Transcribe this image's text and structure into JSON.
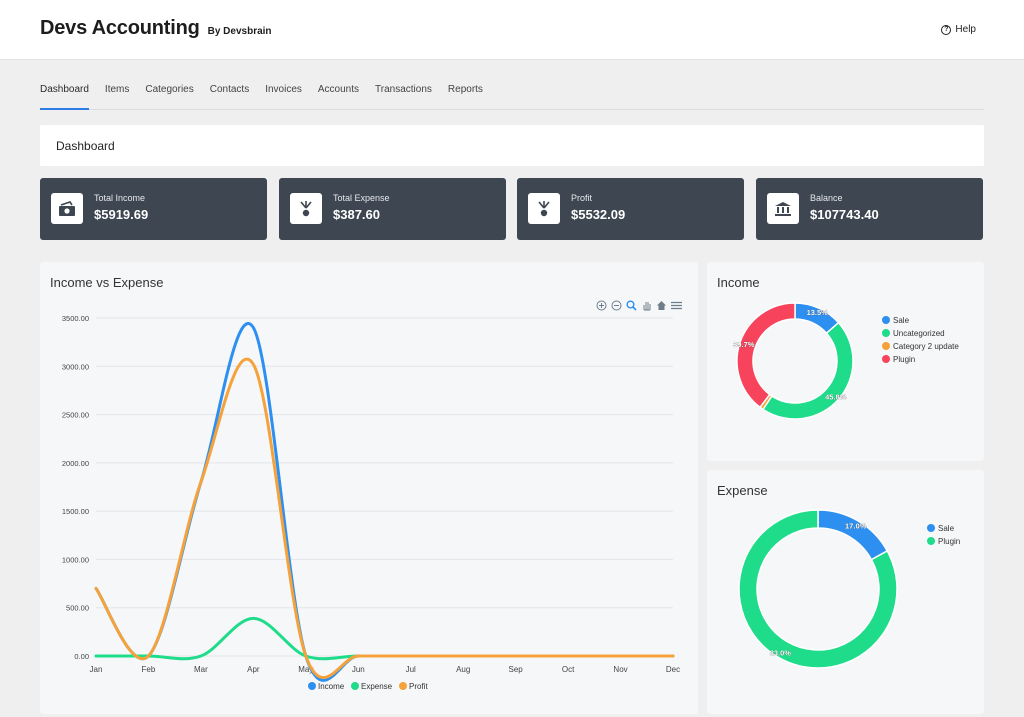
{
  "header": {
    "title": "Devs Accounting",
    "subtitle": "By Devsbrain",
    "help": "Help"
  },
  "nav": [
    {
      "label": "Dashboard",
      "active": true
    },
    {
      "label": "Items"
    },
    {
      "label": "Categories"
    },
    {
      "label": "Contacts"
    },
    {
      "label": "Invoices"
    },
    {
      "label": "Accounts"
    },
    {
      "label": "Transactions"
    },
    {
      "label": "Reports"
    }
  ],
  "page_title": "Dashboard",
  "stats": [
    {
      "label": "Total Income",
      "value": "$5919.69",
      "icon": "money-icon"
    },
    {
      "label": "Total Expense",
      "value": "$387.60",
      "icon": "expense-icon"
    },
    {
      "label": "Profit",
      "value": "$5532.09",
      "icon": "profit-icon"
    },
    {
      "label": "Balance",
      "value": "$107743.40",
      "icon": "bank-icon"
    }
  ],
  "income_expense": {
    "title": "Income vs Expense"
  },
  "income_card": {
    "title": "Income"
  },
  "expense_card": {
    "title": "Expense"
  },
  "colors": {
    "income": "#2d8ff0",
    "expense": "#1fdc8a",
    "profit": "#f5a23b",
    "plugin": "#f7435c",
    "category2": "#f5a23b"
  },
  "chart_data": [
    {
      "type": "line",
      "title": "Income vs Expense",
      "categories": [
        "Jan",
        "Feb",
        "Mar",
        "Apr",
        "May",
        "Jun",
        "Jul",
        "Aug",
        "Sep",
        "Oct",
        "Nov",
        "Dec"
      ],
      "y_ticks": [
        "0.00",
        "500.00",
        "1000.00",
        "1500.00",
        "2000.00",
        "2500.00",
        "3000.00",
        "3500.00"
      ],
      "ylim": [
        0,
        3500
      ],
      "series": [
        {
          "name": "Income",
          "values": [
            700,
            0,
            1800,
            3400,
            0,
            0,
            0,
            0,
            0,
            0,
            0,
            0
          ]
        },
        {
          "name": "Expense",
          "values": [
            0,
            0,
            0,
            390,
            0,
            0,
            0,
            0,
            0,
            0,
            0,
            0
          ]
        },
        {
          "name": "Profit",
          "values": [
            700,
            0,
            1800,
            3020,
            0,
            0,
            0,
            0,
            0,
            0,
            0,
            0
          ]
        }
      ],
      "legend": "bottom"
    },
    {
      "type": "pie",
      "title": "Income",
      "slices": [
        {
          "name": "Sale",
          "value": 13.5,
          "label": "13.5%"
        },
        {
          "name": "Uncategorized",
          "value": 45.8,
          "label": "45.8%"
        },
        {
          "name": "Category 2 update",
          "value": 1.0,
          "label": ""
        },
        {
          "name": "Plugin",
          "value": 39.7,
          "label": "39.7%"
        }
      ],
      "legend": "right"
    },
    {
      "type": "pie",
      "title": "Expense",
      "slices": [
        {
          "name": "Sale",
          "value": 17.0,
          "label": "17.0%"
        },
        {
          "name": "Plugin",
          "value": 83.0,
          "label": "83.0%"
        }
      ],
      "legend": "right"
    }
  ]
}
